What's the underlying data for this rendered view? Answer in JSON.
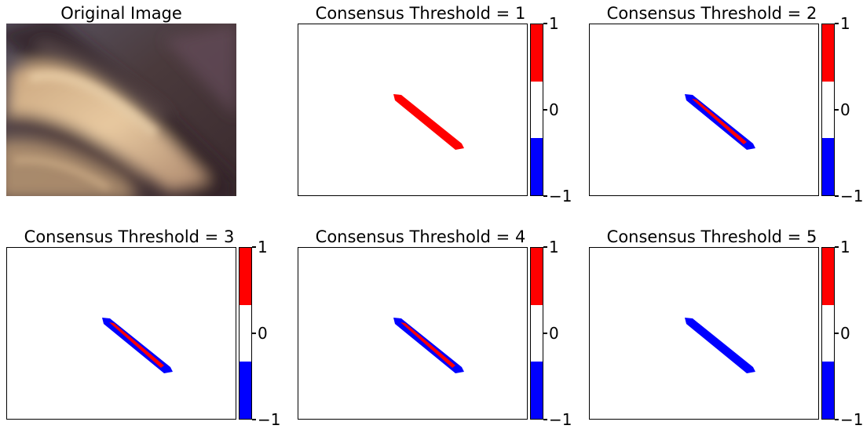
{
  "figure": {
    "original": {
      "title": "Original Image"
    },
    "colorbar": {
      "colors": [
        "#ff0000",
        "#ffffff",
        "#0000ff"
      ],
      "tick_labels": [
        "1",
        "0",
        "−1"
      ]
    },
    "mask_colors": {
      "positive": "#ff0000",
      "negative": "#0000ff"
    },
    "panels": [
      {
        "title": "Consensus Threshold = 1",
        "outer_band": "positive",
        "inner_band": "positive"
      },
      {
        "title": "Consensus Threshold = 2",
        "outer_band": "negative",
        "inner_band": "positive"
      },
      {
        "title": "Consensus Threshold = 3",
        "outer_band": "negative",
        "inner_band": "positive"
      },
      {
        "title": "Consensus Threshold = 4",
        "outer_band": "negative",
        "inner_band": "positive"
      },
      {
        "title": "Consensus Threshold = 5",
        "outer_band": "negative",
        "inner_band": "negative"
      }
    ]
  }
}
